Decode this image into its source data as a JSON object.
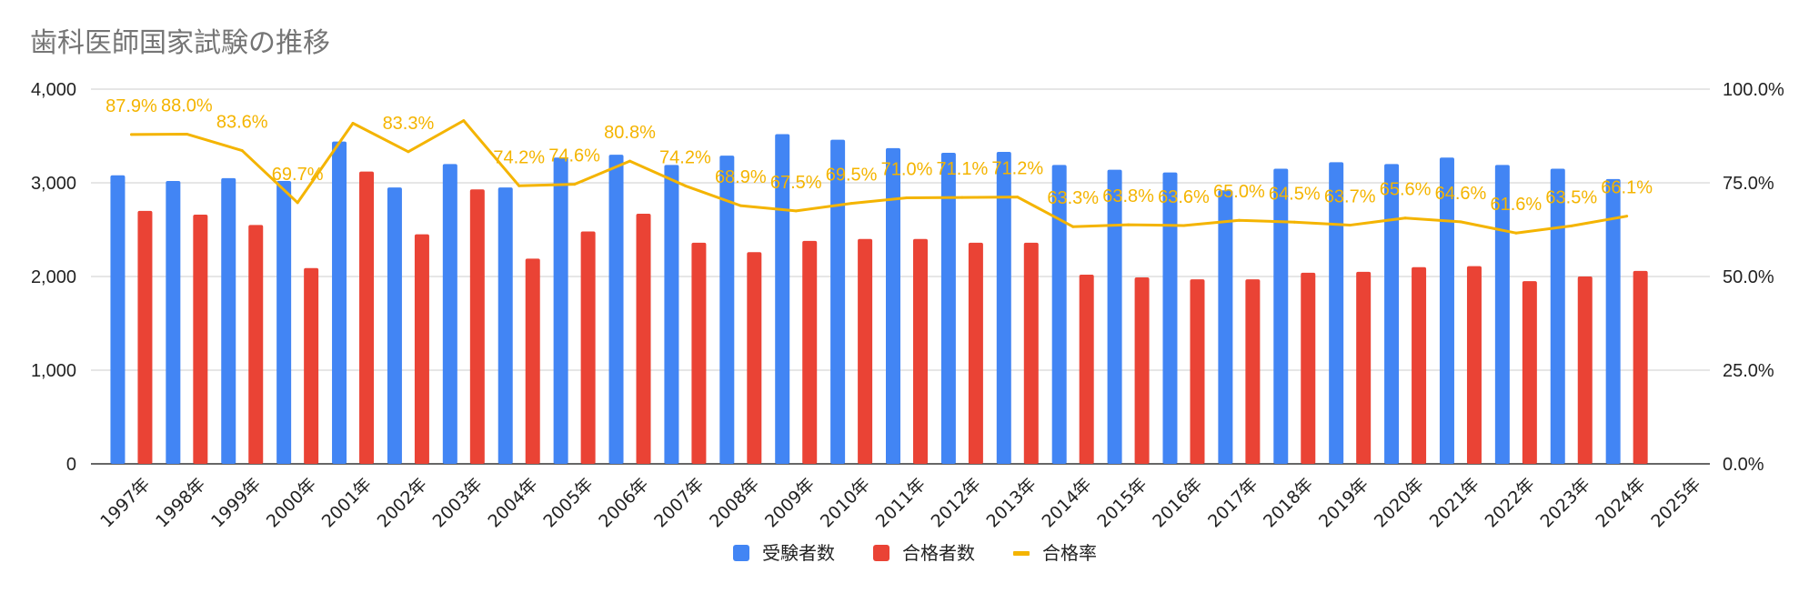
{
  "chart_data": {
    "type": "bar",
    "title": "歯科医師国家試験の推移",
    "xlabel": "",
    "ylabel": "",
    "categories": [
      "1997年",
      "1998年",
      "1999年",
      "2000年",
      "2001年",
      "2002年",
      "2003年",
      "2004年",
      "2005年",
      "2006年",
      "2007年",
      "2008年",
      "2009年",
      "2010年",
      "2011年",
      "2012年",
      "2013年",
      "2014年",
      "2015年",
      "2016年",
      "2017年",
      "2018年",
      "2019年",
      "2020年",
      "2021年",
      "2022年",
      "2023年",
      "2024年",
      "2025年"
    ],
    "ylim": [
      0,
      4000
    ],
    "y_ticks": [
      "0",
      "1,000",
      "2,000",
      "3,000",
      "4,000"
    ],
    "y2lim": [
      0,
      100
    ],
    "y2_ticks": [
      "0.0%",
      "25.0%",
      "50.0%",
      "75.0%",
      "100.0%"
    ],
    "grid": true,
    "legend_position": "bottom",
    "series": [
      {
        "name": "受験者数",
        "type": "bar",
        "axis": "left",
        "color": "#4285f4",
        "values": [
          3080,
          3020,
          3050,
          3020,
          3440,
          2950,
          3200,
          2950,
          3270,
          3300,
          3190,
          3290,
          3520,
          3460,
          3370,
          3320,
          3330,
          3190,
          3140,
          3110,
          2920,
          3150,
          3220,
          3200,
          3270,
          3190,
          3150,
          3040,
          null
        ]
      },
      {
        "name": "合格者数",
        "type": "bar",
        "axis": "left",
        "color": "#ea4335",
        "values": [
          2700,
          2660,
          2550,
          2090,
          3120,
          2450,
          2930,
          2190,
          2480,
          2670,
          2360,
          2260,
          2380,
          2400,
          2400,
          2360,
          2360,
          2020,
          1990,
          1970,
          1970,
          2040,
          2050,
          2100,
          2110,
          1950,
          2000,
          2060,
          null
        ]
      },
      {
        "name": "合格率",
        "type": "line",
        "axis": "right",
        "color": "#f4b400",
        "values": [
          87.9,
          88.0,
          83.6,
          69.7,
          90.9,
          83.3,
          91.6,
          74.2,
          74.6,
          80.8,
          74.2,
          68.9,
          67.5,
          69.5,
          71.0,
          71.1,
          71.2,
          63.3,
          63.8,
          63.6,
          65.0,
          64.5,
          63.7,
          65.6,
          64.6,
          61.6,
          63.5,
          66.1,
          null
        ],
        "data_labels": [
          "87.9%",
          "88.0%",
          "83.6%",
          "69.7%",
          "",
          "83.3%",
          "",
          "74.2%",
          "74.6%",
          "80.8%",
          "74.2%",
          "68.9%",
          "67.5%",
          "69.5%",
          "71.0%",
          "71.1%",
          "71.2%",
          "63.3%",
          "63.8%",
          "63.6%",
          "65.0%",
          "64.5%",
          "63.7%",
          "65.6%",
          "64.6%",
          "61.6%",
          "63.5%",
          "66.1%",
          ""
        ]
      }
    ]
  }
}
